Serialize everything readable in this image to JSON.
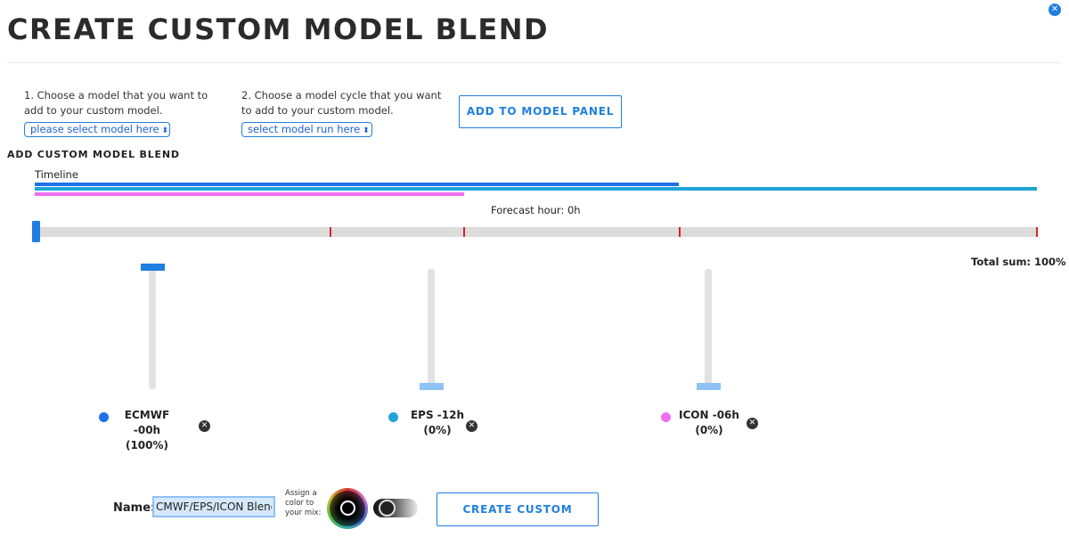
{
  "header": {
    "title": "CREATE CUSTOM MODEL BLEND",
    "close_icon": "x-circle-icon",
    "close_glyph": "✕"
  },
  "step1": {
    "text": "1. Choose a model that you want to add to your custom model.",
    "select_value": "please select model here"
  },
  "step2": {
    "text": "2. Choose a model cycle that you want to add to your custom model.",
    "select_value": "select model run here"
  },
  "add_button_label": "ADD TO MODEL PANEL",
  "section_label": "ADD CUSTOM MODEL BLEND",
  "timeline": {
    "label": "Timeline",
    "forecast_label": "Forecast hour: 0h",
    "forecast_hour": 0
  },
  "total_sum_label": "Total sum: 100%",
  "models": [
    {
      "name": "ECMWF -00h",
      "percent": "(100%)",
      "weight": 1.0,
      "color": "#1f6fe8"
    },
    {
      "name": "EPS -12h",
      "percent": "(0%)",
      "weight": 0.0,
      "color": "#1fa3d6"
    },
    {
      "name": "ICON -06h",
      "percent": "(0%)",
      "weight": 0.0,
      "color": "#ef6ff0"
    }
  ],
  "footer": {
    "name_label": "Name:",
    "name_value": "CMWF/EPS/ICON Blend",
    "assign_text_1": "Assign a",
    "assign_text_2": "color to",
    "assign_text_3": "your mix:",
    "create_button_label": "CREATE CUSTOM"
  },
  "colors": {
    "accent": "#1f7fe0",
    "tick": "#e0202a"
  }
}
